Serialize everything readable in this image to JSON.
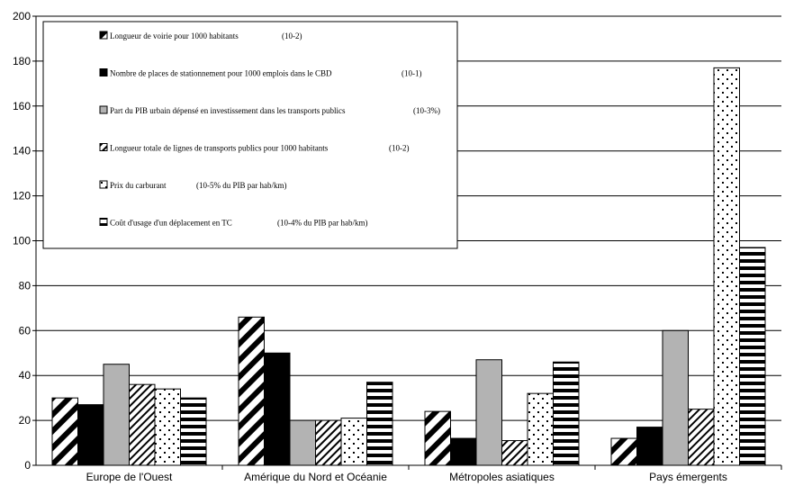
{
  "chart_data": {
    "type": "bar",
    "categories": [
      "Europe de l'Ouest",
      "Amérique du Nord et Océanie",
      "Métropoles asiatiques",
      "Pays émergents"
    ],
    "ylim": [
      0,
      200
    ],
    "yticks": [
      0,
      20,
      40,
      60,
      80,
      100,
      120,
      140,
      160,
      180,
      200
    ],
    "grid": true,
    "legend_placement": "top-left",
    "series": [
      {
        "name": "Longueur de voirie pour 1000 habitants",
        "unit": "(10-2)",
        "pattern": "diagonal-stripes",
        "values": [
          30,
          66,
          24,
          12
        ]
      },
      {
        "name": "Nombre de places de stationnement pour 1000 emplois dans le CBD",
        "unit": "(10-1)",
        "pattern": "solid-black",
        "values": [
          27,
          50,
          12,
          17
        ]
      },
      {
        "name": "Part du PIB urbain dépensé en investissement dans les transports publics",
        "unit": "(10-3%)",
        "pattern": "solid-gray",
        "values": [
          45,
          20,
          47,
          60
        ]
      },
      {
        "name": "Longueur totale de lignes de transports publics pour 1000 habitants",
        "unit": "(10-2)",
        "pattern": "thin-diagonal",
        "values": [
          36,
          20,
          11,
          25
        ]
      },
      {
        "name": "Prix du carburant",
        "unit": "(10-5% du PIB par hab/km)",
        "pattern": "dots",
        "values": [
          34,
          21,
          32,
          177
        ]
      },
      {
        "name": "Coût d'usage d'un déplacement en TC",
        "unit": "(10-4% du PIB par hab/km)",
        "pattern": "horizontal-stripes",
        "values": [
          30,
          37,
          46,
          97
        ]
      }
    ]
  }
}
